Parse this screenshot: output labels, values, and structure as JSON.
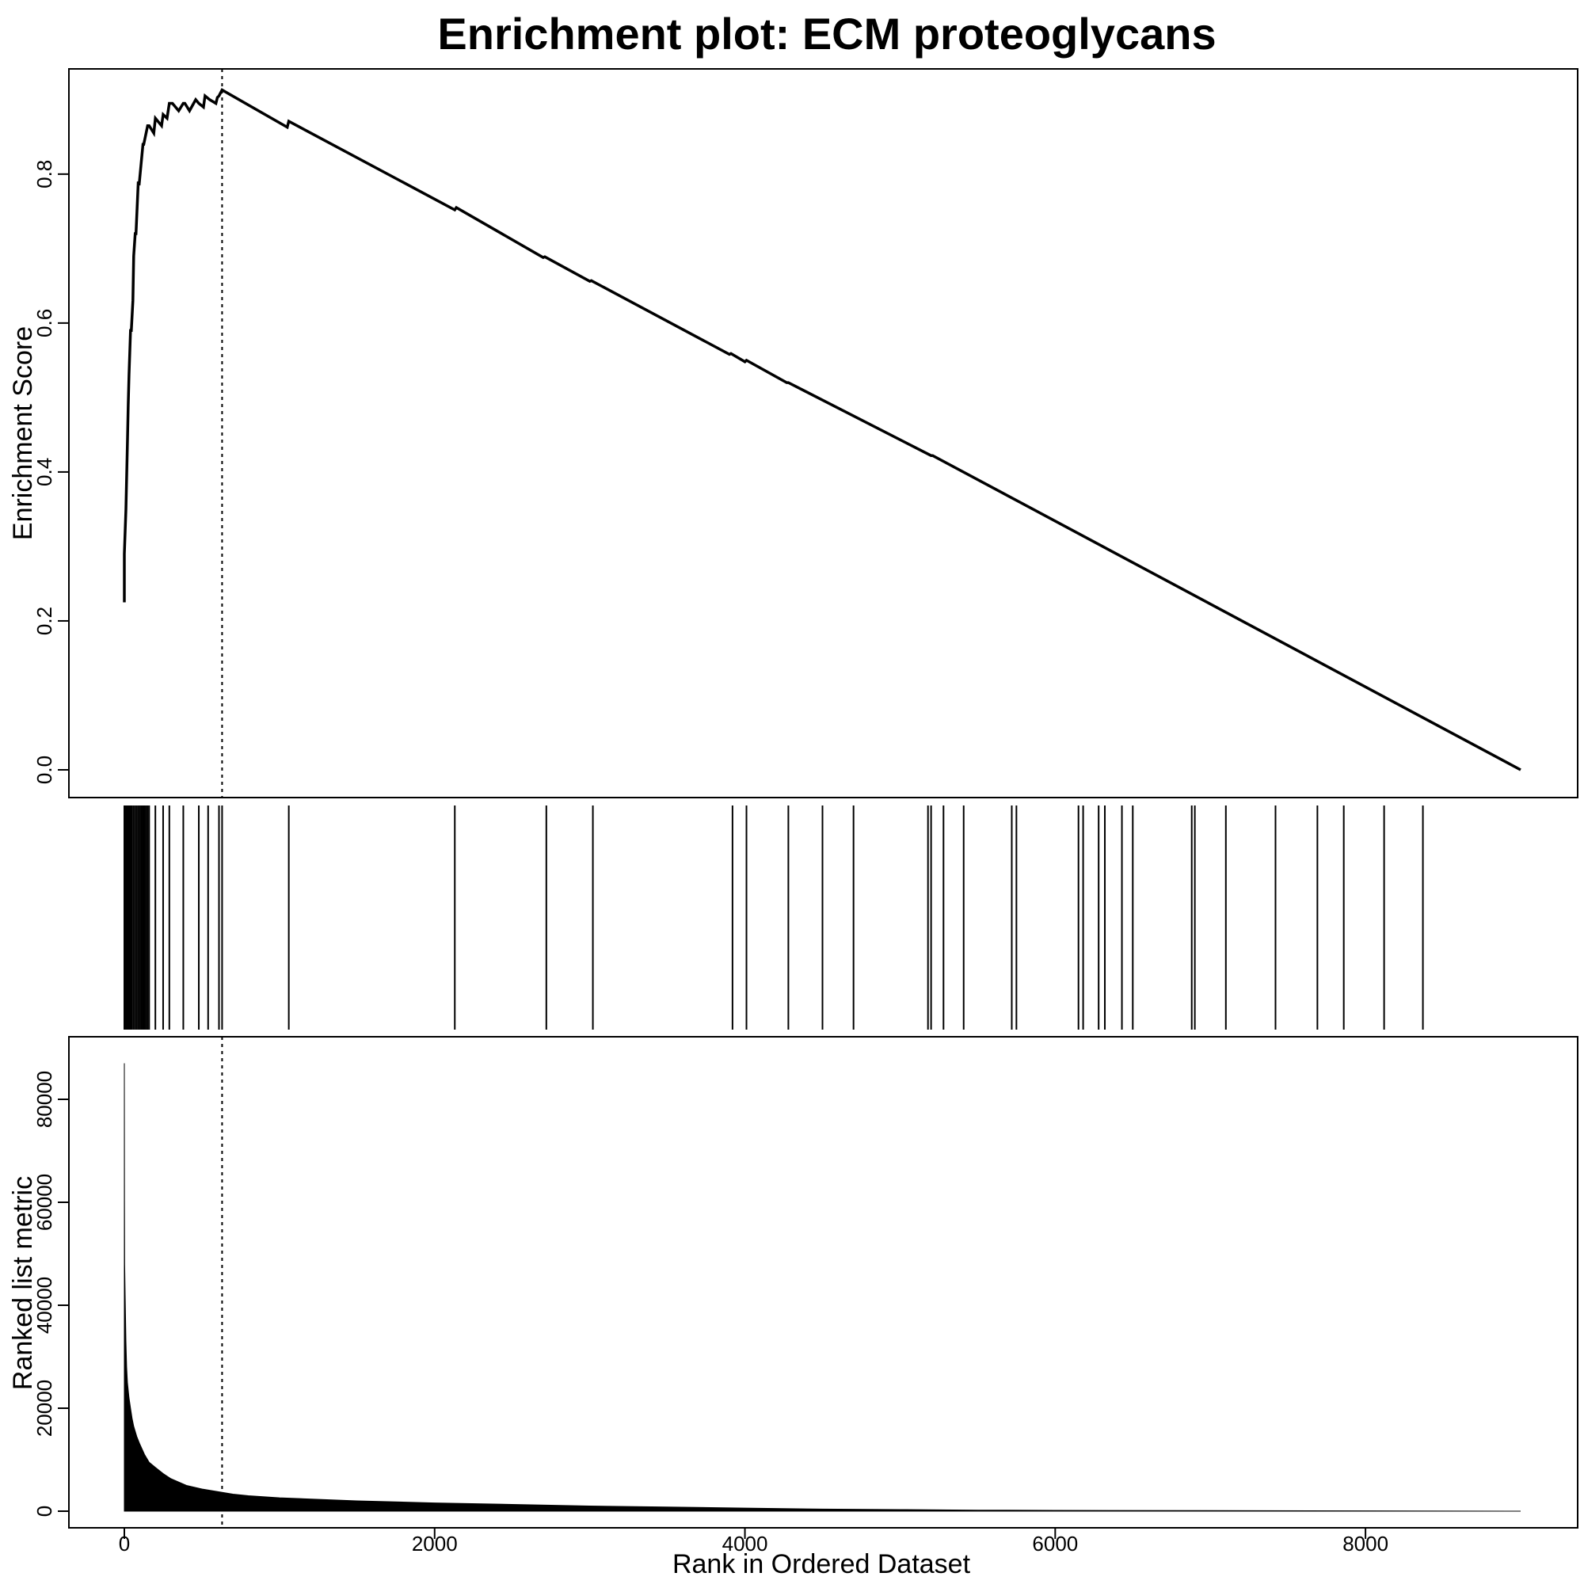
{
  "chart_data": [
    {
      "type": "line",
      "panel": "enrichment-score",
      "title": "Enrichment plot: ECM proteoglycans",
      "ylabel": "Enrichment Score",
      "xlim": [
        0,
        9000
      ],
      "ylim": [
        0.0,
        0.92
      ],
      "yticks": [
        0.0,
        0.2,
        0.4,
        0.6,
        0.8
      ],
      "ytick_labels": [
        "0.0",
        "0.2",
        "0.4",
        "0.6",
        "0.8"
      ],
      "line_color": "#000000",
      "peak_rank": 630,
      "x": [
        0,
        0,
        10,
        20,
        25,
        30,
        40,
        45,
        55,
        60,
        70,
        75,
        90,
        95,
        120,
        125,
        150,
        160,
        190,
        200,
        240,
        250,
        275,
        290,
        310,
        350,
        380,
        390,
        420,
        460,
        480,
        510,
        520,
        550,
        590,
        600,
        610,
        630,
        1050,
        1060,
        2130,
        2140,
        2700,
        2710,
        3000,
        3010,
        3900,
        3910,
        4000,
        4010,
        4270,
        4280,
        5200,
        5210,
        9000
      ],
      "y": [
        0.225,
        0.29,
        0.35,
        0.44,
        0.49,
        0.53,
        0.59,
        0.59,
        0.63,
        0.69,
        0.72,
        0.72,
        0.79,
        0.785,
        0.84,
        0.84,
        0.865,
        0.865,
        0.855,
        0.875,
        0.865,
        0.88,
        0.875,
        0.895,
        0.895,
        0.885,
        0.895,
        0.895,
        0.885,
        0.9,
        0.895,
        0.89,
        0.905,
        0.9,
        0.895,
        0.903,
        0.905,
        0.913,
        0.863,
        0.871,
        0.752,
        0.755,
        0.688,
        0.689,
        0.656,
        0.657,
        0.558,
        0.559,
        0.548,
        0.55,
        0.52,
        0.52,
        0.422,
        0.422,
        0.0
      ]
    },
    {
      "type": "barcode",
      "panel": "hit-positions",
      "xlim": [
        0,
        9000
      ],
      "hits": [
        0,
        5,
        10,
        15,
        20,
        25,
        30,
        35,
        40,
        45,
        50,
        60,
        70,
        80,
        90,
        100,
        110,
        120,
        130,
        140,
        150,
        160,
        200,
        250,
        290,
        380,
        480,
        540,
        610,
        630,
        1060,
        2130,
        2720,
        3020,
        3920,
        4010,
        4280,
        4500,
        4700,
        5180,
        5200,
        5280,
        5410,
        5720,
        5750,
        6150,
        6180,
        6280,
        6320,
        6430,
        6500,
        6880,
        6900,
        7100,
        7420,
        7690,
        7860,
        8120,
        8370
      ]
    },
    {
      "type": "area",
      "panel": "ranked-list-metric",
      "xlabel": "Rank in Ordered Dataset",
      "ylabel": "Ranked list metric",
      "xlim": [
        0,
        9000
      ],
      "ylim": [
        0,
        88000
      ],
      "xticks": [
        0,
        2000,
        4000,
        6000,
        8000
      ],
      "xtick_labels": [
        "0",
        "2000",
        "4000",
        "6000",
        "8000"
      ],
      "yticks": [
        0,
        20000,
        40000,
        60000,
        80000
      ],
      "ytick_labels": [
        "0",
        "20000",
        "40000",
        "60000",
        "80000"
      ],
      "fill_color": "#000000",
      "x": [
        0,
        1,
        2,
        5,
        10,
        15,
        20,
        30,
        40,
        50,
        60,
        80,
        100,
        130,
        160,
        200,
        250,
        300,
        400,
        500,
        600,
        700,
        800,
        1000,
        1500,
        2000,
        2500,
        3000,
        3500,
        4000,
        4500,
        5000,
        5500,
        6000,
        7000,
        8000,
        9000
      ],
      "y": [
        87000,
        60000,
        48000,
        42000,
        33000,
        28000,
        25000,
        22000,
        20000,
        18000,
        16500,
        14500,
        13000,
        11000,
        9500,
        8500,
        7300,
        6300,
        5000,
        4300,
        3800,
        3300,
        3000,
        2600,
        2000,
        1600,
        1300,
        1000,
        800,
        600,
        400,
        300,
        200,
        150,
        100,
        60,
        0
      ]
    }
  ]
}
